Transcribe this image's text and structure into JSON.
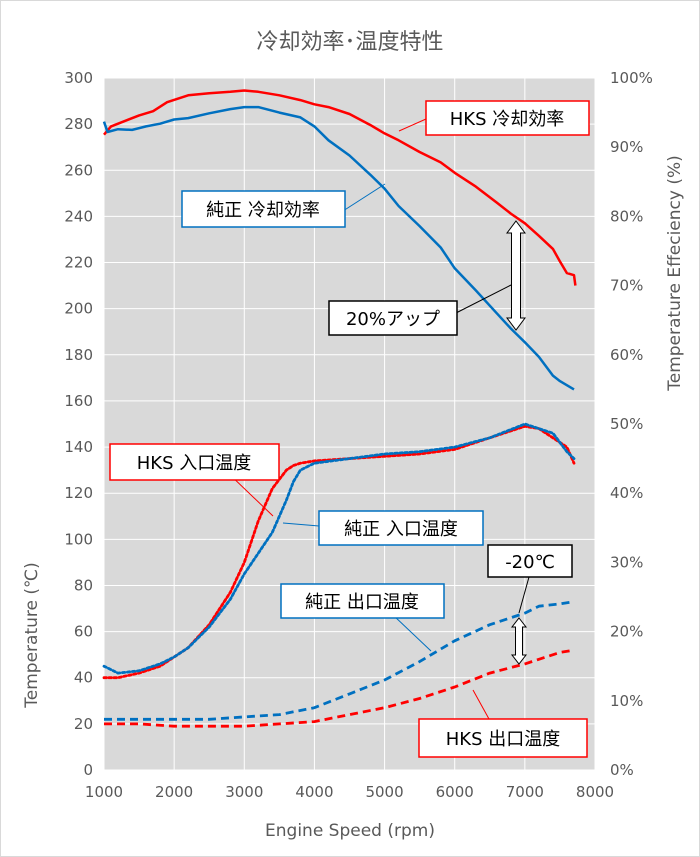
{
  "chart_data": {
    "type": "line",
    "title": "冷却効率･温度特性",
    "xlabel": "Engine Speed (rpm)",
    "ylabel_left": "Temperature (℃)",
    "ylabel_right": "Temperature Effeciency (%)",
    "xlim": [
      1000,
      8000
    ],
    "ylim_left": [
      0,
      300
    ],
    "ylim_right": [
      0,
      100
    ],
    "x_ticks": [
      "1000",
      "2000",
      "3000",
      "4000",
      "5000",
      "6000",
      "7000",
      "8000"
    ],
    "y_ticks_left": [
      "0",
      "20",
      "40",
      "60",
      "80",
      "100",
      "120",
      "140",
      "160",
      "180",
      "200",
      "220",
      "240",
      "260",
      "280",
      "300"
    ],
    "y_ticks_right": [
      "0%",
      "10%",
      "20%",
      "30%",
      "40%",
      "50%",
      "60%",
      "70%",
      "80%",
      "90%",
      "100%"
    ],
    "grid": true,
    "series": [
      {
        "name": "HKS 冷却効率",
        "axis": "right",
        "color": "#ff0000",
        "dash": "solid",
        "points": [
          [
            1000,
            91.8
          ],
          [
            1100,
            93.0
          ],
          [
            1300,
            93.8
          ],
          [
            1500,
            94.6
          ],
          [
            1700,
            95.2
          ],
          [
            1900,
            96.5
          ],
          [
            2200,
            97.5
          ],
          [
            2500,
            97.8
          ],
          [
            2800,
            98.0
          ],
          [
            3000,
            98.2
          ],
          [
            3200,
            98.0
          ],
          [
            3500,
            97.5
          ],
          [
            3800,
            96.8
          ],
          [
            4000,
            96.2
          ],
          [
            4200,
            95.8
          ],
          [
            4500,
            94.8
          ],
          [
            4800,
            93.2
          ],
          [
            5000,
            92.0
          ],
          [
            5200,
            91.0
          ],
          [
            5500,
            89.3
          ],
          [
            5800,
            87.8
          ],
          [
            6000,
            86.3
          ],
          [
            6300,
            84.3
          ],
          [
            6600,
            82.0
          ],
          [
            6800,
            80.4
          ],
          [
            7000,
            79.0
          ],
          [
            7200,
            77.2
          ],
          [
            7400,
            75.3
          ],
          [
            7500,
            73.5
          ],
          [
            7600,
            71.8
          ],
          [
            7700,
            71.5
          ],
          [
            7720,
            70.0
          ]
        ]
      },
      {
        "name": "純正 冷却効率",
        "axis": "right",
        "color": "#0070c0",
        "dash": "solid",
        "points": [
          [
            1000,
            93.7
          ],
          [
            1050,
            92.2
          ],
          [
            1200,
            92.6
          ],
          [
            1400,
            92.5
          ],
          [
            1600,
            93.0
          ],
          [
            1800,
            93.4
          ],
          [
            2000,
            94.0
          ],
          [
            2200,
            94.2
          ],
          [
            2500,
            94.9
          ],
          [
            2800,
            95.5
          ],
          [
            3000,
            95.8
          ],
          [
            3200,
            95.8
          ],
          [
            3500,
            95.0
          ],
          [
            3800,
            94.3
          ],
          [
            4000,
            93.0
          ],
          [
            4200,
            91.0
          ],
          [
            4500,
            88.8
          ],
          [
            4800,
            86.0
          ],
          [
            5000,
            84.0
          ],
          [
            5200,
            81.5
          ],
          [
            5500,
            78.6
          ],
          [
            5800,
            75.5
          ],
          [
            6000,
            72.5
          ],
          [
            6300,
            69.3
          ],
          [
            6600,
            66.0
          ],
          [
            6800,
            63.8
          ],
          [
            7000,
            61.8
          ],
          [
            7200,
            59.7
          ],
          [
            7400,
            57.0
          ],
          [
            7500,
            56.2
          ],
          [
            7700,
            55.0
          ]
        ]
      },
      {
        "name": "HKS 入口温度",
        "axis": "left",
        "color": "#ff0000",
        "dash": "dot",
        "points": [
          [
            1000,
            40
          ],
          [
            1200,
            40
          ],
          [
            1500,
            42
          ],
          [
            1800,
            45
          ],
          [
            2000,
            49
          ],
          [
            2200,
            53
          ],
          [
            2500,
            63
          ],
          [
            2800,
            77
          ],
          [
            3000,
            90
          ],
          [
            3200,
            108
          ],
          [
            3400,
            122
          ],
          [
            3600,
            130
          ],
          [
            3700,
            132
          ],
          [
            3800,
            133
          ],
          [
            4000,
            134
          ],
          [
            4500,
            135
          ],
          [
            5000,
            136
          ],
          [
            5500,
            137
          ],
          [
            6000,
            139
          ],
          [
            6500,
            144
          ],
          [
            7000,
            149
          ],
          [
            7200,
            148
          ],
          [
            7400,
            144
          ],
          [
            7600,
            140
          ],
          [
            7700,
            133
          ]
        ]
      },
      {
        "name": "純正 入口温度",
        "axis": "left",
        "color": "#0070c0",
        "dash": "dot",
        "points": [
          [
            1000,
            45
          ],
          [
            1200,
            42
          ],
          [
            1500,
            43
          ],
          [
            1800,
            46
          ],
          [
            2000,
            49
          ],
          [
            2200,
            53
          ],
          [
            2500,
            62
          ],
          [
            2800,
            74
          ],
          [
            3000,
            85
          ],
          [
            3200,
            94
          ],
          [
            3400,
            103
          ],
          [
            3600,
            117
          ],
          [
            3700,
            125
          ],
          [
            3800,
            130
          ],
          [
            4000,
            133
          ],
          [
            4500,
            135
          ],
          [
            5000,
            137
          ],
          [
            5500,
            138
          ],
          [
            6000,
            140
          ],
          [
            6500,
            144
          ],
          [
            7000,
            150
          ],
          [
            7200,
            148
          ],
          [
            7400,
            146
          ],
          [
            7600,
            138
          ],
          [
            7700,
            135
          ]
        ]
      },
      {
        "name": "純正 出口温度",
        "axis": "left",
        "color": "#0070c0",
        "dash": "dash",
        "points": [
          [
            1000,
            22
          ],
          [
            1500,
            22
          ],
          [
            2000,
            22
          ],
          [
            2500,
            22
          ],
          [
            3000,
            23
          ],
          [
            3500,
            24
          ],
          [
            4000,
            27
          ],
          [
            4500,
            33
          ],
          [
            5000,
            39
          ],
          [
            5500,
            47
          ],
          [
            6000,
            56
          ],
          [
            6500,
            63
          ],
          [
            7000,
            68
          ],
          [
            7200,
            71
          ],
          [
            7500,
            72
          ],
          [
            7700,
            73
          ]
        ]
      },
      {
        "name": "HKS 出口温度",
        "axis": "left",
        "color": "#ff0000",
        "dash": "dash",
        "points": [
          [
            1000,
            20
          ],
          [
            1500,
            20
          ],
          [
            2000,
            19
          ],
          [
            2500,
            19
          ],
          [
            3000,
            19
          ],
          [
            3500,
            20
          ],
          [
            4000,
            21
          ],
          [
            4500,
            24
          ],
          [
            5000,
            27
          ],
          [
            5500,
            31
          ],
          [
            6000,
            36
          ],
          [
            6500,
            42
          ],
          [
            7000,
            46
          ],
          [
            7200,
            48
          ],
          [
            7500,
            51
          ],
          [
            7700,
            52
          ]
        ]
      }
    ],
    "annotations": {
      "hks_efficiency": "HKS 冷却効率",
      "stock_efficiency": "純正 冷却効率",
      "hks_inlet": "HKS 入口温度",
      "stock_inlet": "純正 入口温度",
      "stock_outlet": "純正 出口温度",
      "hks_outlet": "HKS 出口温度",
      "efficiency_gain": "20%アップ",
      "temp_drop": "-20℃"
    }
  }
}
